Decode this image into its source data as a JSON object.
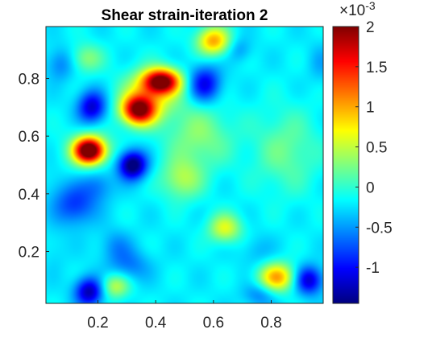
{
  "chart_data": {
    "type": "heatmap",
    "title": "Shear strain-iteration 2",
    "xlabel": "",
    "ylabel": "",
    "xlim": [
      0.02,
      0.98
    ],
    "ylim": [
      0.02,
      0.98
    ],
    "x_ticks": [
      0.2,
      0.4,
      0.6,
      0.8
    ],
    "x_tick_labels": [
      "0.2",
      "0.4",
      "0.6",
      "0.8"
    ],
    "y_ticks": [
      0.2,
      0.4,
      0.6,
      0.8
    ],
    "y_tick_labels": [
      "0.2",
      "0.4",
      "0.6",
      "0.8"
    ],
    "colorbar": {
      "colormap": "jet",
      "range": [
        -1.45,
        2.0
      ],
      "ticks": [
        -1,
        -0.5,
        0,
        0.5,
        1,
        1.5,
        2
      ],
      "tick_labels": [
        "-1",
        "-0.5",
        "0",
        "0.5",
        "1",
        "1.5",
        "2"
      ],
      "exponent_base": "×10",
      "exponent_power": "-3"
    },
    "background_value": -0.2,
    "features": [
      {
        "x": 0.42,
        "y": 0.79,
        "value": 1.9,
        "sx": 0.045,
        "sy": 0.03
      },
      {
        "x": 0.34,
        "y": 0.69,
        "value": 1.8,
        "sx": 0.04,
        "sy": 0.035
      },
      {
        "x": 0.38,
        "y": 0.74,
        "value": 0.6,
        "sx": 0.07,
        "sy": 0.06
      },
      {
        "x": 0.17,
        "y": 0.55,
        "value": 2.05,
        "sx": 0.035,
        "sy": 0.03
      },
      {
        "x": 0.17,
        "y": 0.55,
        "value": 0.3,
        "sx": 0.06,
        "sy": 0.05
      },
      {
        "x": 0.32,
        "y": 0.5,
        "value": -1.6,
        "sx": 0.035,
        "sy": 0.035
      },
      {
        "x": 0.18,
        "y": 0.7,
        "value": -1.2,
        "sx": 0.035,
        "sy": 0.04
      },
      {
        "x": 0.57,
        "y": 0.78,
        "value": -1.1,
        "sx": 0.04,
        "sy": 0.045
      },
      {
        "x": 0.07,
        "y": 0.85,
        "value": -0.6,
        "sx": 0.035,
        "sy": 0.04
      },
      {
        "x": 0.12,
        "y": 0.36,
        "value": -0.85,
        "sx": 0.05,
        "sy": 0.05
      },
      {
        "x": 0.2,
        "y": 0.43,
        "value": -0.6,
        "sx": 0.04,
        "sy": 0.04
      },
      {
        "x": 0.05,
        "y": 0.43,
        "value": -0.3,
        "sx": 0.03,
        "sy": 0.05
      },
      {
        "x": 0.05,
        "y": 0.2,
        "value": -0.3,
        "sx": 0.03,
        "sy": 0.05
      },
      {
        "x": 0.26,
        "y": 0.22,
        "value": -0.5,
        "sx": 0.04,
        "sy": 0.04
      },
      {
        "x": 0.31,
        "y": 0.15,
        "value": -0.6,
        "sx": 0.05,
        "sy": 0.04
      },
      {
        "x": 0.17,
        "y": 0.06,
        "value": -1.3,
        "sx": 0.035,
        "sy": 0.035
      },
      {
        "x": 0.93,
        "y": 0.1,
        "value": -1.2,
        "sx": 0.035,
        "sy": 0.035
      },
      {
        "x": 0.76,
        "y": 0.05,
        "value": -0.6,
        "sx": 0.04,
        "sy": 0.03
      },
      {
        "x": 0.82,
        "y": 0.11,
        "value": 1.0,
        "sx": 0.045,
        "sy": 0.035
      },
      {
        "x": 0.6,
        "y": 0.93,
        "value": 1.0,
        "sx": 0.04,
        "sy": 0.035
      },
      {
        "x": 0.64,
        "y": 0.28,
        "value": 0.6,
        "sx": 0.04,
        "sy": 0.035
      },
      {
        "x": 0.49,
        "y": 0.45,
        "value": 0.4,
        "sx": 0.05,
        "sy": 0.05
      },
      {
        "x": 0.16,
        "y": 0.87,
        "value": 0.3,
        "sx": 0.04,
        "sy": 0.035
      },
      {
        "x": 0.26,
        "y": 0.08,
        "value": 0.5,
        "sx": 0.035,
        "sy": 0.03
      },
      {
        "x": 0.69,
        "y": 0.9,
        "value": -0.5,
        "sx": 0.03,
        "sy": 0.03
      },
      {
        "x": 0.97,
        "y": 0.85,
        "value": -0.4,
        "sx": 0.03,
        "sy": 0.05
      },
      {
        "x": 0.75,
        "y": 0.2,
        "value": -0.4,
        "sx": 0.04,
        "sy": 0.04
      },
      {
        "x": 0.55,
        "y": 0.6,
        "value": 0.3,
        "sx": 0.08,
        "sy": 0.08
      },
      {
        "x": 0.85,
        "y": 0.55,
        "value": 0.2,
        "sx": 0.08,
        "sy": 0.1
      }
    ]
  }
}
